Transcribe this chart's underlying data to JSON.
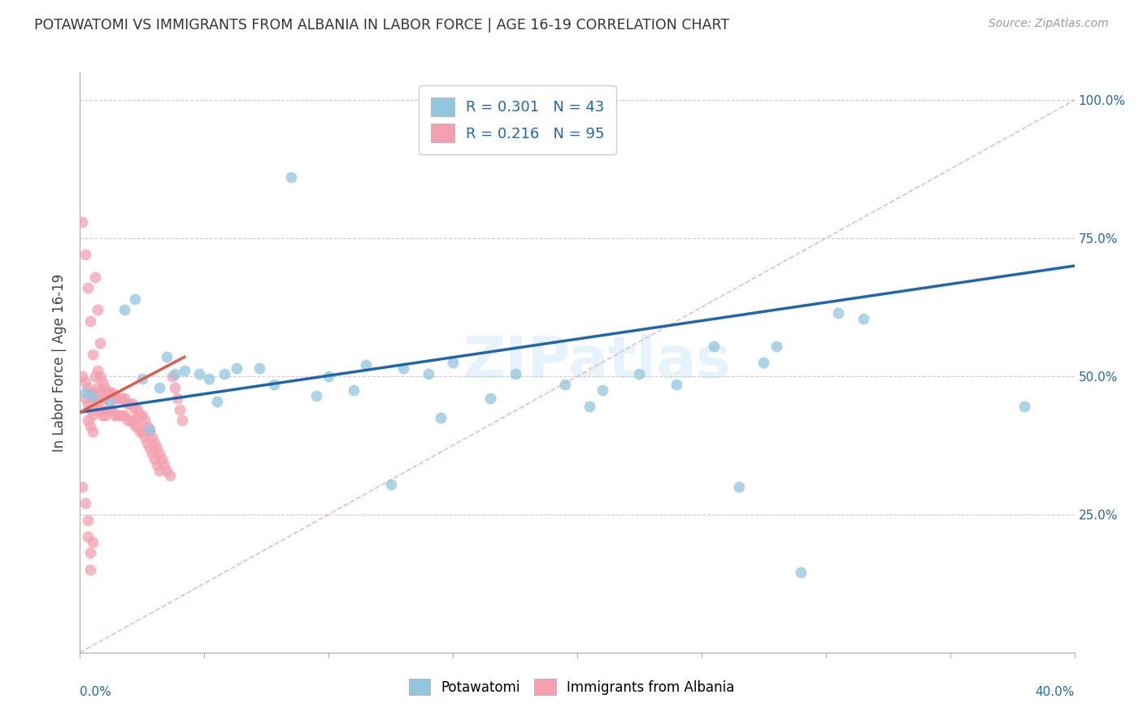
{
  "title": "POTAWATOMI VS IMMIGRANTS FROM ALBANIA IN LABOR FORCE | AGE 16-19 CORRELATION CHART",
  "source": "Source: ZipAtlas.com",
  "ylabel": "In Labor Force | Age 16-19",
  "xlim": [
    0.0,
    0.4
  ],
  "ylim": [
    0.0,
    1.05
  ],
  "blue_color": "#92c5de",
  "pink_color": "#f4a0b0",
  "blue_line_color": "#2166ac",
  "pink_line_color": "#d6604d",
  "ref_line_color": "#d6a0b0",
  "grid_color": "#cccccc",
  "legend_R_blue": "0.301",
  "legend_N_blue": "43",
  "legend_R_pink": "0.216",
  "legend_N_pink": "95",
  "legend_text_color": "#2166ac",
  "watermark": "ZIPatlas",
  "blue_x": [
    0.002,
    0.018,
    0.022,
    0.025,
    0.032,
    0.038,
    0.042,
    0.048,
    0.052,
    0.058,
    0.063,
    0.072,
    0.085,
    0.1,
    0.115,
    0.13,
    0.14,
    0.15,
    0.165,
    0.175,
    0.195,
    0.21,
    0.225,
    0.24,
    0.265,
    0.275,
    0.305,
    0.315,
    0.38,
    0.005,
    0.012,
    0.028,
    0.035,
    0.055,
    0.078,
    0.095,
    0.11,
    0.125,
    0.145,
    0.205,
    0.255,
    0.28,
    0.29
  ],
  "blue_y": [
    0.47,
    0.62,
    0.64,
    0.495,
    0.48,
    0.505,
    0.51,
    0.505,
    0.495,
    0.505,
    0.515,
    0.515,
    0.86,
    0.5,
    0.52,
    0.515,
    0.505,
    0.525,
    0.46,
    0.505,
    0.485,
    0.475,
    0.505,
    0.485,
    0.3,
    0.525,
    0.615,
    0.605,
    0.445,
    0.465,
    0.455,
    0.405,
    0.535,
    0.455,
    0.485,
    0.465,
    0.475,
    0.305,
    0.425,
    0.445,
    0.555,
    0.555,
    0.145
  ],
  "pink_x": [
    0.001,
    0.002,
    0.002,
    0.003,
    0.003,
    0.003,
    0.004,
    0.004,
    0.004,
    0.005,
    0.005,
    0.005,
    0.006,
    0.006,
    0.006,
    0.007,
    0.007,
    0.007,
    0.008,
    0.008,
    0.008,
    0.009,
    0.009,
    0.009,
    0.01,
    0.01,
    0.01,
    0.011,
    0.011,
    0.012,
    0.012,
    0.013,
    0.013,
    0.014,
    0.014,
    0.015,
    0.015,
    0.016,
    0.016,
    0.017,
    0.017,
    0.018,
    0.018,
    0.019,
    0.019,
    0.02,
    0.02,
    0.021,
    0.021,
    0.022,
    0.022,
    0.023,
    0.023,
    0.024,
    0.024,
    0.025,
    0.025,
    0.026,
    0.026,
    0.027,
    0.027,
    0.028,
    0.028,
    0.029,
    0.029,
    0.03,
    0.03,
    0.031,
    0.031,
    0.032,
    0.032,
    0.033,
    0.034,
    0.035,
    0.036,
    0.037,
    0.038,
    0.039,
    0.04,
    0.041,
    0.001,
    0.002,
    0.003,
    0.004,
    0.005,
    0.006,
    0.007,
    0.008,
    0.001,
    0.002,
    0.003,
    0.003,
    0.004,
    0.004,
    0.005
  ],
  "pink_y": [
    0.5,
    0.49,
    0.46,
    0.48,
    0.45,
    0.42,
    0.47,
    0.44,
    0.41,
    0.46,
    0.43,
    0.4,
    0.5,
    0.47,
    0.44,
    0.51,
    0.48,
    0.45,
    0.5,
    0.47,
    0.44,
    0.49,
    0.46,
    0.43,
    0.48,
    0.46,
    0.43,
    0.47,
    0.44,
    0.47,
    0.44,
    0.47,
    0.44,
    0.46,
    0.43,
    0.46,
    0.43,
    0.46,
    0.43,
    0.46,
    0.43,
    0.46,
    0.43,
    0.45,
    0.42,
    0.45,
    0.42,
    0.45,
    0.42,
    0.44,
    0.41,
    0.44,
    0.41,
    0.43,
    0.4,
    0.43,
    0.4,
    0.42,
    0.39,
    0.41,
    0.38,
    0.4,
    0.37,
    0.39,
    0.36,
    0.38,
    0.35,
    0.37,
    0.34,
    0.36,
    0.33,
    0.35,
    0.34,
    0.33,
    0.32,
    0.5,
    0.48,
    0.46,
    0.44,
    0.42,
    0.78,
    0.72,
    0.66,
    0.6,
    0.54,
    0.68,
    0.62,
    0.56,
    0.3,
    0.27,
    0.24,
    0.21,
    0.18,
    0.15,
    0.2
  ],
  "blue_line_x": [
    0.0,
    0.4
  ],
  "blue_line_y": [
    0.435,
    0.7
  ],
  "pink_line_x": [
    0.0,
    0.042
  ],
  "pink_line_y": [
    0.435,
    0.535
  ]
}
